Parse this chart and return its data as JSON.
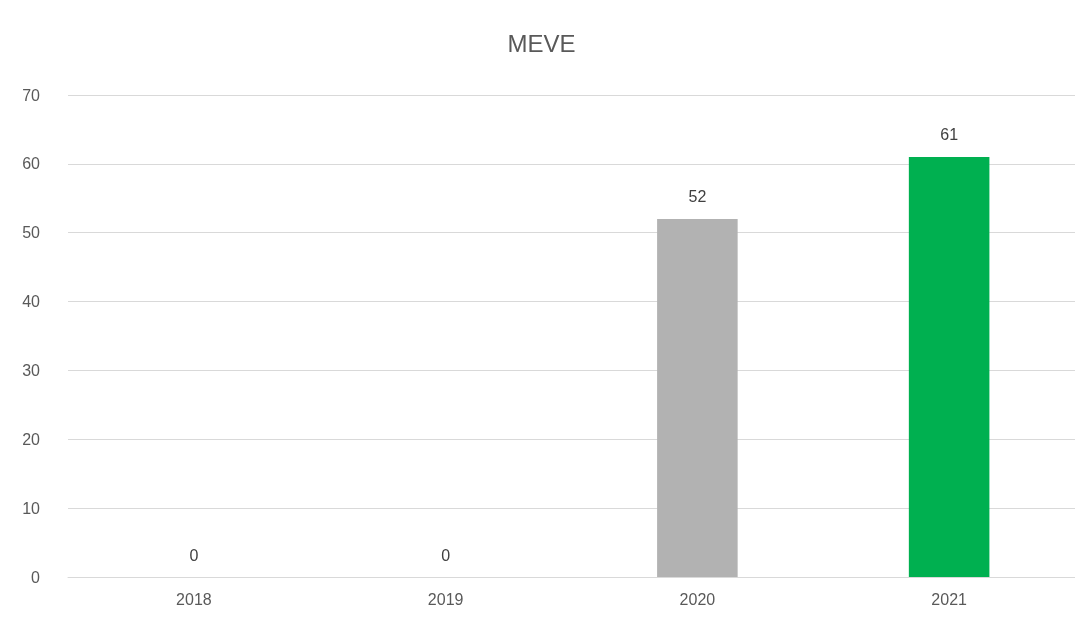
{
  "chart_data": {
    "type": "bar",
    "title": "MEVE",
    "categories": [
      "2018",
      "2019",
      "2020",
      "2021"
    ],
    "values": [
      0,
      0,
      52,
      61
    ],
    "colors": [
      "#b2b2b2",
      "#b2b2b2",
      "#b2b2b2",
      "#00b050"
    ],
    "ylim": [
      0,
      70
    ],
    "yticks": [
      0,
      10,
      20,
      30,
      40,
      50,
      60,
      70
    ],
    "grid": "y",
    "data_labels": true
  }
}
